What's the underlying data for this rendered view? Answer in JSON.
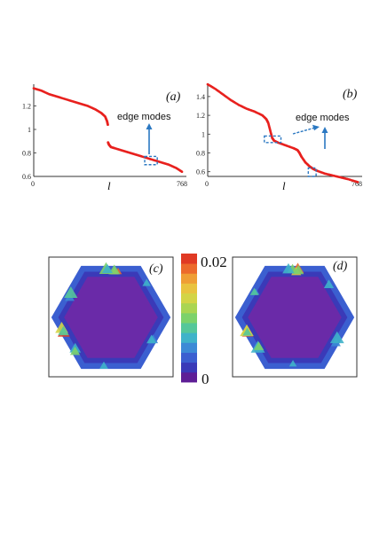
{
  "colors": {
    "curve": "#e8211e",
    "annotation": "#2b78c2",
    "axis": "#333333",
    "hex_interior": "#6a2aa8",
    "colormap": [
      "#5e1e96",
      "#3a3ab8",
      "#3b5fd0",
      "#3c8ad6",
      "#3fb3c9",
      "#55c79a",
      "#7cd26b",
      "#aad552",
      "#d3d446",
      "#e9c33f",
      "#ef9e35",
      "#ec6a2c",
      "#e03a24"
    ]
  },
  "chart_data": [
    {
      "type": "scatter",
      "panel_label": "(a)",
      "annotation": "edge modes",
      "xlabel": "l",
      "ylabel": "",
      "xlim": [
        0,
        768
      ],
      "ylim": [
        0.6,
        1.4
      ],
      "x_ticks": [
        "0",
        "768"
      ],
      "y_ticks": [
        "0.6",
        "0.8",
        "1",
        "1.2"
      ],
      "y_tick_values": [
        0.6,
        0.8,
        1.0,
        1.2
      ],
      "series": [
        {
          "x": [
            0,
            40,
            80,
            120,
            160,
            200,
            240,
            280,
            320,
            350,
            370,
            380,
            384
          ],
          "y": [
            1.35,
            1.33,
            1.3,
            1.28,
            1.26,
            1.24,
            1.22,
            1.2,
            1.17,
            1.14,
            1.11,
            1.07,
            1.04
          ]
        },
        {
          "x": [
            385,
            390,
            400,
            420,
            460,
            500,
            540,
            580,
            620,
            660,
            700,
            740,
            768
          ],
          "y": [
            0.89,
            0.87,
            0.85,
            0.84,
            0.82,
            0.8,
            0.78,
            0.76,
            0.74,
            0.72,
            0.7,
            0.67,
            0.64
          ]
        }
      ],
      "highlight": {
        "x": [
          575,
          640
        ],
        "y": [
          0.7,
          0.77
        ]
      }
    },
    {
      "type": "scatter",
      "panel_label": "(b)",
      "annotation": "edge modes",
      "xlabel": "l",
      "ylabel": "",
      "xlim": [
        0,
        768
      ],
      "ylim": [
        0.55,
        1.55
      ],
      "x_ticks": [
        "0",
        "768"
      ],
      "y_ticks": [
        "0.6",
        "0.8",
        "1",
        "1.2",
        "1.4"
      ],
      "y_tick_values": [
        0.6,
        0.8,
        1.0,
        1.2,
        1.4
      ],
      "series": [
        {
          "x": [
            0,
            40,
            80,
            120,
            160,
            200,
            240,
            280,
            300,
            310,
            320,
            330,
            340,
            360,
            400,
            440,
            460,
            470,
            480,
            500,
            520,
            540,
            560,
            600,
            640,
            680,
            720,
            768
          ],
          "y": [
            1.53,
            1.48,
            1.42,
            1.36,
            1.31,
            1.27,
            1.24,
            1.2,
            1.16,
            1.12,
            1.04,
            0.96,
            0.93,
            0.91,
            0.88,
            0.85,
            0.83,
            0.8,
            0.76,
            0.7,
            0.66,
            0.63,
            0.61,
            0.58,
            0.56,
            0.54,
            0.52,
            0.49
          ]
        }
      ],
      "highlights": [
        {
          "x": [
            290,
            375
          ],
          "y": [
            0.91,
            0.98
          ]
        },
        {
          "x": [
            515,
            555
          ],
          "y": [
            0.55,
            0.64
          ]
        }
      ]
    },
    {
      "type": "heatmap",
      "panel_label": "(c)",
      "colorbar": {
        "max_label": "0.02",
        "min_label": "0",
        "range": [
          0,
          0.02
        ]
      }
    },
    {
      "type": "heatmap",
      "panel_label": "(d)"
    }
  ]
}
